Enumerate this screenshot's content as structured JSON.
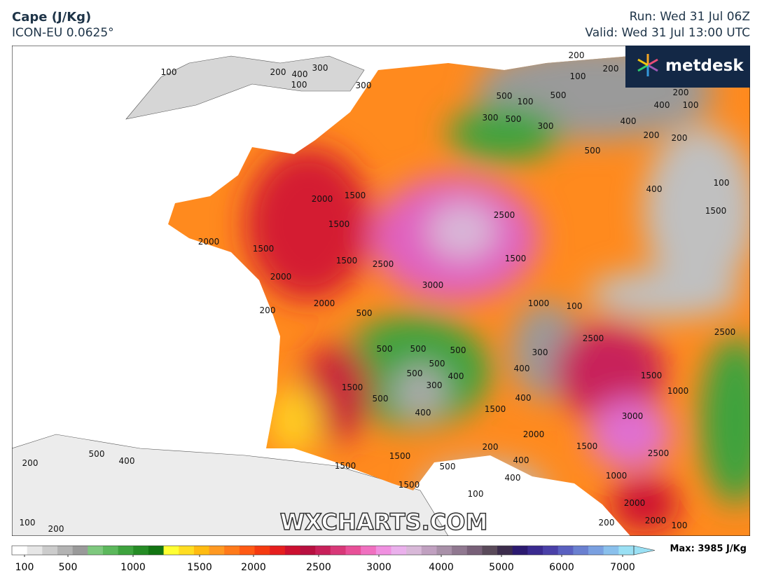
{
  "header": {
    "title": "Cape (J/Kg)",
    "model": "ICON-EU 0.0625°",
    "run": "Run: Wed 31 Jul 06Z",
    "valid": "Valid: Wed 31 Jul 13:00 UTC"
  },
  "brand": "metdesk",
  "watermark": "WXCHARTS.COM",
  "colorbar": {
    "ticks": [
      100,
      500,
      1000,
      1500,
      2000,
      2500,
      3000,
      4000,
      5000,
      6000,
      7000
    ],
    "max_label": "Max: 3985 J/Kg",
    "colors": [
      "#ffffff",
      "#e6e6e6",
      "#cccccc",
      "#b3b3b3",
      "#9a9a9a",
      "#7ec87e",
      "#5cb85c",
      "#3ea33e",
      "#258c25",
      "#127512",
      "#ffff33",
      "#ffdd22",
      "#ffbb11",
      "#ff9922",
      "#ff7a1a",
      "#ff5a14",
      "#f53a10",
      "#e61e1e",
      "#cc1030",
      "#b81040",
      "#c8205a",
      "#d83878",
      "#e85098",
      "#f070c0",
      "#f090e0",
      "#eab0ec",
      "#d8b8d8",
      "#c0a0c0",
      "#a890a8",
      "#907890",
      "#786078",
      "#5a4a5a",
      "#3c2c4c",
      "#2c1a70",
      "#3a2a90",
      "#4a40a8",
      "#5a60c0",
      "#6a80d0",
      "#7aa0e0",
      "#8ac0ec",
      "#9ae0f4"
    ]
  },
  "contour_labels": [
    100,
    200,
    400,
    300,
    100,
    300,
    200,
    200,
    100,
    500,
    100,
    500,
    200,
    400,
    100,
    300,
    500,
    300,
    400,
    200,
    200,
    500,
    1500,
    2000,
    2500,
    400,
    100,
    1500,
    1500,
    2000,
    1500,
    1500,
    2500,
    1500,
    2000,
    3000,
    2000,
    500,
    200,
    1000,
    100,
    500,
    500,
    500,
    500,
    500,
    400,
    400,
    300,
    2500,
    2500,
    1500,
    500,
    300,
    400,
    1500,
    400,
    1500,
    1000,
    3000,
    2000,
    1500,
    200,
    2500,
    500,
    400,
    200,
    1500,
    1500,
    500,
    400,
    400,
    1000,
    1500,
    100,
    2000,
    2000,
    100,
    200,
    200,
    100
  ]
}
